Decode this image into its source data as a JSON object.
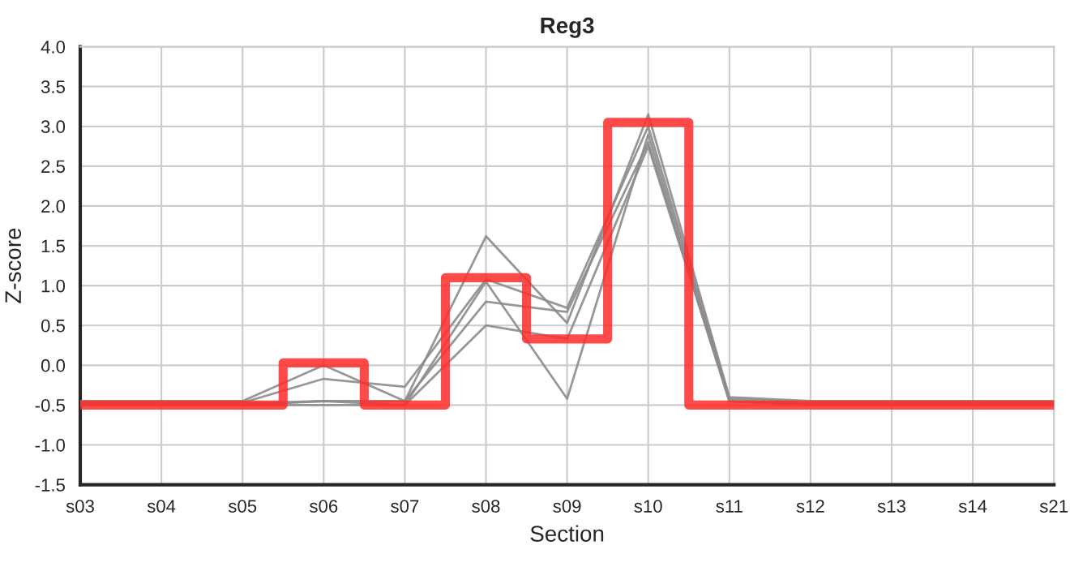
{
  "chart_data": {
    "type": "line",
    "title": "Reg3",
    "xlabel": "Section",
    "ylabel": "Z-score",
    "categories": [
      "s03",
      "s04",
      "s05",
      "s06",
      "s07",
      "s08",
      "s09",
      "s10",
      "s11",
      "s12",
      "s13",
      "s14",
      "s21"
    ],
    "series": [
      {
        "color": "#8c8c8c",
        "values": [
          -0.45,
          -0.45,
          -0.45,
          0.0,
          -0.45,
          1.62,
          0.53,
          3.15,
          -0.4,
          -0.45,
          -0.45,
          -0.45,
          -0.45
        ]
      },
      {
        "color": "#8c8c8c",
        "values": [
          -0.47,
          -0.47,
          -0.47,
          -0.17,
          -0.27,
          1.08,
          0.72,
          3.0,
          -0.42,
          -0.47,
          -0.47,
          -0.47,
          -0.47
        ]
      },
      {
        "color": "#8c8c8c",
        "values": [
          -0.48,
          -0.48,
          -0.48,
          -0.45,
          -0.5,
          1.05,
          -0.42,
          2.9,
          -0.45,
          -0.48,
          -0.48,
          -0.48,
          -0.48
        ]
      },
      {
        "color": "#8c8c8c",
        "values": [
          -0.5,
          -0.5,
          -0.5,
          -0.45,
          -0.45,
          0.8,
          0.67,
          2.8,
          -0.45,
          -0.5,
          -0.5,
          -0.5,
          -0.5
        ]
      },
      {
        "color": "#8c8c8c",
        "values": [
          -0.5,
          -0.5,
          -0.5,
          -0.5,
          -0.5,
          0.5,
          0.33,
          2.75,
          -0.45,
          -0.5,
          -0.5,
          -0.5,
          -0.5
        ]
      },
      {
        "type": "step",
        "color": "#ff2a2a",
        "values": [
          -0.5,
          -0.5,
          -0.5,
          0.03,
          -0.5,
          1.1,
          0.33,
          3.05,
          -0.5,
          -0.5,
          -0.5,
          -0.5,
          -0.5
        ]
      }
    ],
    "ylim": [
      -1.5,
      4.0
    ],
    "yticks": [
      {
        "value": -1.5,
        "label": "-1.5"
      },
      {
        "value": -1,
        "label": "-1.0"
      },
      {
        "value": -0.5,
        "label": "-0.5"
      },
      {
        "value": 0,
        "label": "0.0"
      },
      {
        "value": 0.5,
        "label": "0.5"
      },
      {
        "value": 1,
        "label": "1.0"
      },
      {
        "value": 1.5,
        "label": "1.5"
      },
      {
        "value": 2,
        "label": "2.0"
      },
      {
        "value": 2.5,
        "label": "2.5"
      },
      {
        "value": 3,
        "label": "3.0"
      },
      {
        "value": 3.5,
        "label": "3.5"
      },
      {
        "value": 4,
        "label": "4.0"
      }
    ],
    "grid": true,
    "marker": "none",
    "line_style": "solid"
  }
}
